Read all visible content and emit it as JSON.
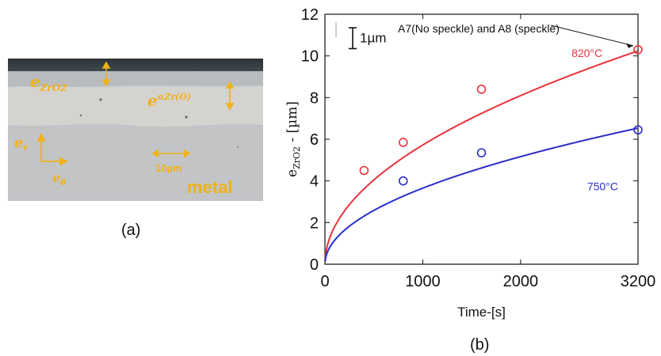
{
  "panel_a": {
    "caption": "(a)",
    "labels": {
      "zro2": "e",
      "zro2_sub": "ZrO2",
      "alpha": "e",
      "alpha_sub": "αZr(O)",
      "er": "e",
      "er_sub": "r",
      "etheta": "e",
      "etheta_sub": "θ",
      "scale": "10µm",
      "metal": "metal"
    }
  },
  "panel_b": {
    "caption": "(b)"
  },
  "chart_data": {
    "type": "scatter",
    "title": "",
    "xlabel": "Time-[s]",
    "ylabel": "eZrO2 - [µm]",
    "ylabel_main": "e",
    "ylabel_sub": "ZrO2",
    "ylabel_rest": " - [µm]",
    "xlim": [
      0,
      3200
    ],
    "ylim": [
      0,
      12
    ],
    "xticks": [
      0,
      1000,
      2000,
      3200
    ],
    "yticks": [
      0,
      2,
      4,
      6,
      8,
      10,
      12
    ],
    "grid": false,
    "series": [
      {
        "name": "820°C",
        "color": "#e8323c",
        "points": [
          [
            400,
            4.5
          ],
          [
            800,
            5.85
          ],
          [
            1600,
            8.4
          ],
          [
            3200,
            10.3
          ]
        ],
        "fit_coef": 0.181
      },
      {
        "name": "750°C",
        "color": "#2a2fc9",
        "points": [
          [
            800,
            4.0
          ],
          [
            1600,
            5.35
          ],
          [
            3200,
            6.45
          ]
        ],
        "fit_coef": 0.1155
      }
    ],
    "annotations": {
      "scale_bar": "1µm",
      "arrow_text": "A7(No speckle) and A8 (speckle)"
    }
  }
}
